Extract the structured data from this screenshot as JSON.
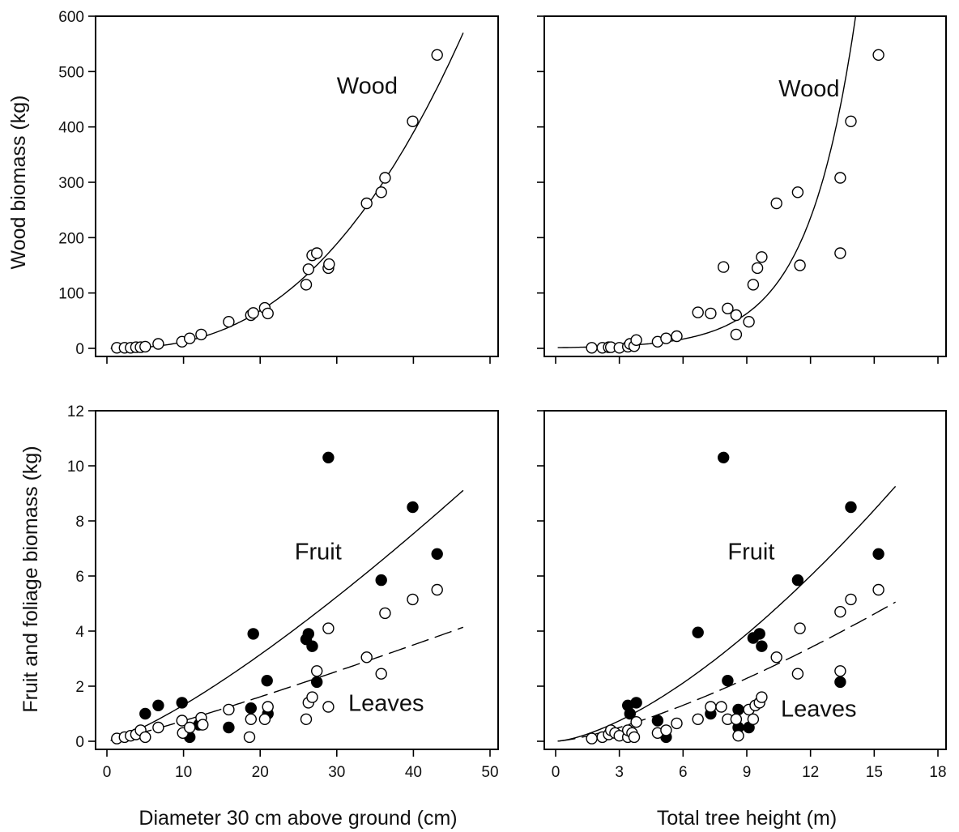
{
  "chart_data": [
    {
      "type": "scatter",
      "panel": "top-left",
      "ylabel": "Wood biomass (kg)",
      "xlim": [
        0,
        50
      ],
      "ylim": [
        0,
        600
      ],
      "xticks": [
        0,
        10,
        20,
        30,
        40,
        50
      ],
      "xtick_labels_shown": false,
      "yticks": [
        0,
        100,
        200,
        300,
        400,
        500,
        600
      ],
      "annotations": [
        {
          "text": "Wood",
          "at": [
            30,
            460
          ]
        }
      ],
      "series": [
        {
          "name": "Wood",
          "marker": "open",
          "points": [
            [
              1.3,
              1
            ],
            [
              2.3,
              1
            ],
            [
              3.1,
              1
            ],
            [
              3.8,
              2
            ],
            [
              4.4,
              2
            ],
            [
              5.0,
              3
            ],
            [
              6.7,
              8
            ],
            [
              9.8,
              12
            ],
            [
              10.8,
              18
            ],
            [
              12.3,
              25
            ],
            [
              15.9,
              48
            ],
            [
              18.8,
              60
            ],
            [
              19.1,
              64
            ],
            [
              20.6,
              73
            ],
            [
              21.0,
              63
            ],
            [
              26.0,
              115
            ],
            [
              26.3,
              143
            ],
            [
              26.8,
              168
            ],
            [
              27.4,
              172
            ],
            [
              28.9,
              145
            ],
            [
              29.0,
              152
            ],
            [
              33.9,
              262
            ],
            [
              35.8,
              282
            ],
            [
              36.3,
              308
            ],
            [
              39.9,
              410
            ],
            [
              43.1,
              530
            ]
          ]
        }
      ],
      "fits": [
        {
          "style": "solid",
          "form": "power",
          "a": 0.0358,
          "b": 2.52,
          "x_range": [
            0.5,
            46.5
          ]
        }
      ]
    },
    {
      "type": "scatter",
      "panel": "top-right",
      "xlim": [
        0,
        18
      ],
      "ylim": [
        0,
        600
      ],
      "xticks": [
        0,
        3,
        6,
        9,
        12,
        15,
        18
      ],
      "xtick_labels_shown": false,
      "yticks": [
        0,
        100,
        200,
        300,
        400,
        500,
        600
      ],
      "ytick_labels_shown": false,
      "annotations": [
        {
          "text": "Wood",
          "at": [
            10.5,
            455
          ]
        }
      ],
      "series": [
        {
          "name": "Wood",
          "marker": "open",
          "points": [
            [
              1.7,
              1
            ],
            [
              2.2,
              1
            ],
            [
              2.5,
              2
            ],
            [
              2.6,
              2
            ],
            [
              3.0,
              1
            ],
            [
              3.4,
              3
            ],
            [
              3.5,
              8
            ],
            [
              3.7,
              4
            ],
            [
              3.8,
              15
            ],
            [
              4.8,
              12
            ],
            [
              5.2,
              18
            ],
            [
              5.7,
              22
            ],
            [
              6.7,
              65
            ],
            [
              7.3,
              63
            ],
            [
              7.9,
              147
            ],
            [
              8.1,
              72
            ],
            [
              8.5,
              60
            ],
            [
              8.5,
              25
            ],
            [
              9.1,
              48
            ],
            [
              9.3,
              115
            ],
            [
              9.5,
              145
            ],
            [
              9.7,
              165
            ],
            [
              10.4,
              262
            ],
            [
              11.4,
              282
            ],
            [
              11.5,
              150
            ],
            [
              13.4,
              308
            ],
            [
              13.4,
              172
            ],
            [
              13.9,
              410
            ],
            [
              15.2,
              530
            ]
          ]
        }
      ],
      "fits": [
        {
          "style": "solid",
          "form": "exponential",
          "a": 1.2,
          "b": 0.44,
          "x_range": [
            0.1,
            14.5
          ]
        }
      ]
    },
    {
      "type": "scatter",
      "panel": "bottom-left",
      "xlabel": "Diameter 30 cm above ground (cm)",
      "ylabel": "Fruit and foliage biomass (kg)",
      "xlim": [
        0,
        50
      ],
      "ylim": [
        0,
        12
      ],
      "xticks": [
        0,
        10,
        20,
        30,
        40,
        50
      ],
      "yticks": [
        0,
        2,
        4,
        6,
        8,
        10,
        12
      ],
      "annotations": [
        {
          "text": "Fruit",
          "at": [
            24.5,
            6.6
          ]
        },
        {
          "text": "Leaves",
          "at": [
            31.5,
            1.1
          ]
        }
      ],
      "series": [
        {
          "name": "Fruit",
          "marker": "filled",
          "points": [
            [
              5,
              1.0
            ],
            [
              6.7,
              1.3
            ],
            [
              9.8,
              1.4
            ],
            [
              10.8,
              0.15
            ],
            [
              12,
              0.6
            ],
            [
              15.9,
              0.5
            ],
            [
              18.8,
              1.2
            ],
            [
              19.1,
              3.9
            ],
            [
              20.9,
              2.2
            ],
            [
              21,
              1.0
            ],
            [
              26,
              3.7
            ],
            [
              26.3,
              3.9
            ],
            [
              26.8,
              3.45
            ],
            [
              27.4,
              2.15
            ],
            [
              28.9,
              10.3
            ],
            [
              35.8,
              5.85
            ],
            [
              39.9,
              8.5
            ],
            [
              43.1,
              6.8
            ]
          ]
        },
        {
          "name": "Leaves",
          "marker": "open",
          "points": [
            [
              1.3,
              0.1
            ],
            [
              2.3,
              0.15
            ],
            [
              3.1,
              0.2
            ],
            [
              3.8,
              0.25
            ],
            [
              4.4,
              0.4
            ],
            [
              5.0,
              0.15
            ],
            [
              6.7,
              0.5
            ],
            [
              9.8,
              0.75
            ],
            [
              9.9,
              0.3
            ],
            [
              10.8,
              0.5
            ],
            [
              12.3,
              0.85
            ],
            [
              12.5,
              0.6
            ],
            [
              15.9,
              1.15
            ],
            [
              18.6,
              0.15
            ],
            [
              18.8,
              0.8
            ],
            [
              20.6,
              0.8
            ],
            [
              21,
              1.25
            ],
            [
              26,
              0.8
            ],
            [
              26.3,
              1.4
            ],
            [
              26.8,
              1.6
            ],
            [
              27.4,
              2.55
            ],
            [
              28.9,
              1.25
            ],
            [
              28.9,
              4.1
            ],
            [
              33.9,
              3.05
            ],
            [
              35.8,
              2.45
            ],
            [
              36.3,
              4.65
            ],
            [
              39.9,
              5.15
            ],
            [
              43.1,
              5.5
            ]
          ]
        }
      ],
      "fits": [
        {
          "series": "Fruit",
          "style": "solid",
          "form": "power",
          "a": 0.0722,
          "b": 1.26,
          "x_range": [
            0.5,
            46.5
          ]
        },
        {
          "series": "Leaves",
          "style": "dashed",
          "form": "power",
          "a": 0.0568,
          "b": 1.117,
          "x_range": [
            0.5,
            46.5
          ]
        }
      ]
    },
    {
      "type": "scatter",
      "panel": "bottom-right",
      "xlabel": "Total tree height (m)",
      "xlim": [
        0,
        18
      ],
      "ylim": [
        0,
        12
      ],
      "xticks": [
        0,
        3,
        6,
        9,
        12,
        15,
        18
      ],
      "yticks": [
        0,
        2,
        4,
        6,
        8,
        10,
        12
      ],
      "ytick_labels_shown": false,
      "annotations": [
        {
          "text": "Fruit",
          "at": [
            8.1,
            6.6
          ]
        },
        {
          "text": "Leaves",
          "at": [
            10.6,
            0.9
          ]
        }
      ],
      "series": [
        {
          "name": "Fruit",
          "marker": "filled",
          "points": [
            [
              3.4,
              1.3
            ],
            [
              3.5,
              1.0
            ],
            [
              3.8,
              1.4
            ],
            [
              4.8,
              0.75
            ],
            [
              5.2,
              0.15
            ],
            [
              6.7,
              3.95
            ],
            [
              7.3,
              1.0
            ],
            [
              7.9,
              10.3
            ],
            [
              8.1,
              2.2
            ],
            [
              8.6,
              0.5
            ],
            [
              8.6,
              1.15
            ],
            [
              9.1,
              0.5
            ],
            [
              9.3,
              3.75
            ],
            [
              9.6,
              3.9
            ],
            [
              9.7,
              3.45
            ],
            [
              11.4,
              5.85
            ],
            [
              13.4,
              2.15
            ],
            [
              13.9,
              8.5
            ],
            [
              15.2,
              6.8
            ]
          ]
        },
        {
          "name": "Leaves",
          "marker": "open",
          "points": [
            [
              1.7,
              0.1
            ],
            [
              2.2,
              0.15
            ],
            [
              2.5,
              0.25
            ],
            [
              2.6,
              0.4
            ],
            [
              2.8,
              0.3
            ],
            [
              3.0,
              0.2
            ],
            [
              3.4,
              0.15
            ],
            [
              3.4,
              0.4
            ],
            [
              3.6,
              0.3
            ],
            [
              3.7,
              0.15
            ],
            [
              3.8,
              0.7
            ],
            [
              4.8,
              0.3
            ],
            [
              5.2,
              0.4
            ],
            [
              5.7,
              0.65
            ],
            [
              6.7,
              0.8
            ],
            [
              7.3,
              1.25
            ],
            [
              7.8,
              1.25
            ],
            [
              8.1,
              0.8
            ],
            [
              8.5,
              0.8
            ],
            [
              8.6,
              0.2
            ],
            [
              9.1,
              1.15
            ],
            [
              9.3,
              0.8
            ],
            [
              9.4,
              1.3
            ],
            [
              9.6,
              1.4
            ],
            [
              9.7,
              1.6
            ],
            [
              10.4,
              3.05
            ],
            [
              11.4,
              2.45
            ],
            [
              11.5,
              4.1
            ],
            [
              13.4,
              2.55
            ],
            [
              13.4,
              4.7
            ],
            [
              13.9,
              5.15
            ],
            [
              15.2,
              5.5
            ]
          ]
        }
      ],
      "fits": [
        {
          "series": "Fruit",
          "style": "solid",
          "form": "power",
          "a": 0.143,
          "b": 1.504,
          "x_range": [
            0.1,
            16
          ]
        },
        {
          "series": "Leaves",
          "style": "dashed",
          "form": "power",
          "a": 0.1104,
          "b": 1.379,
          "x_range": [
            0.1,
            16
          ]
        }
      ]
    }
  ]
}
